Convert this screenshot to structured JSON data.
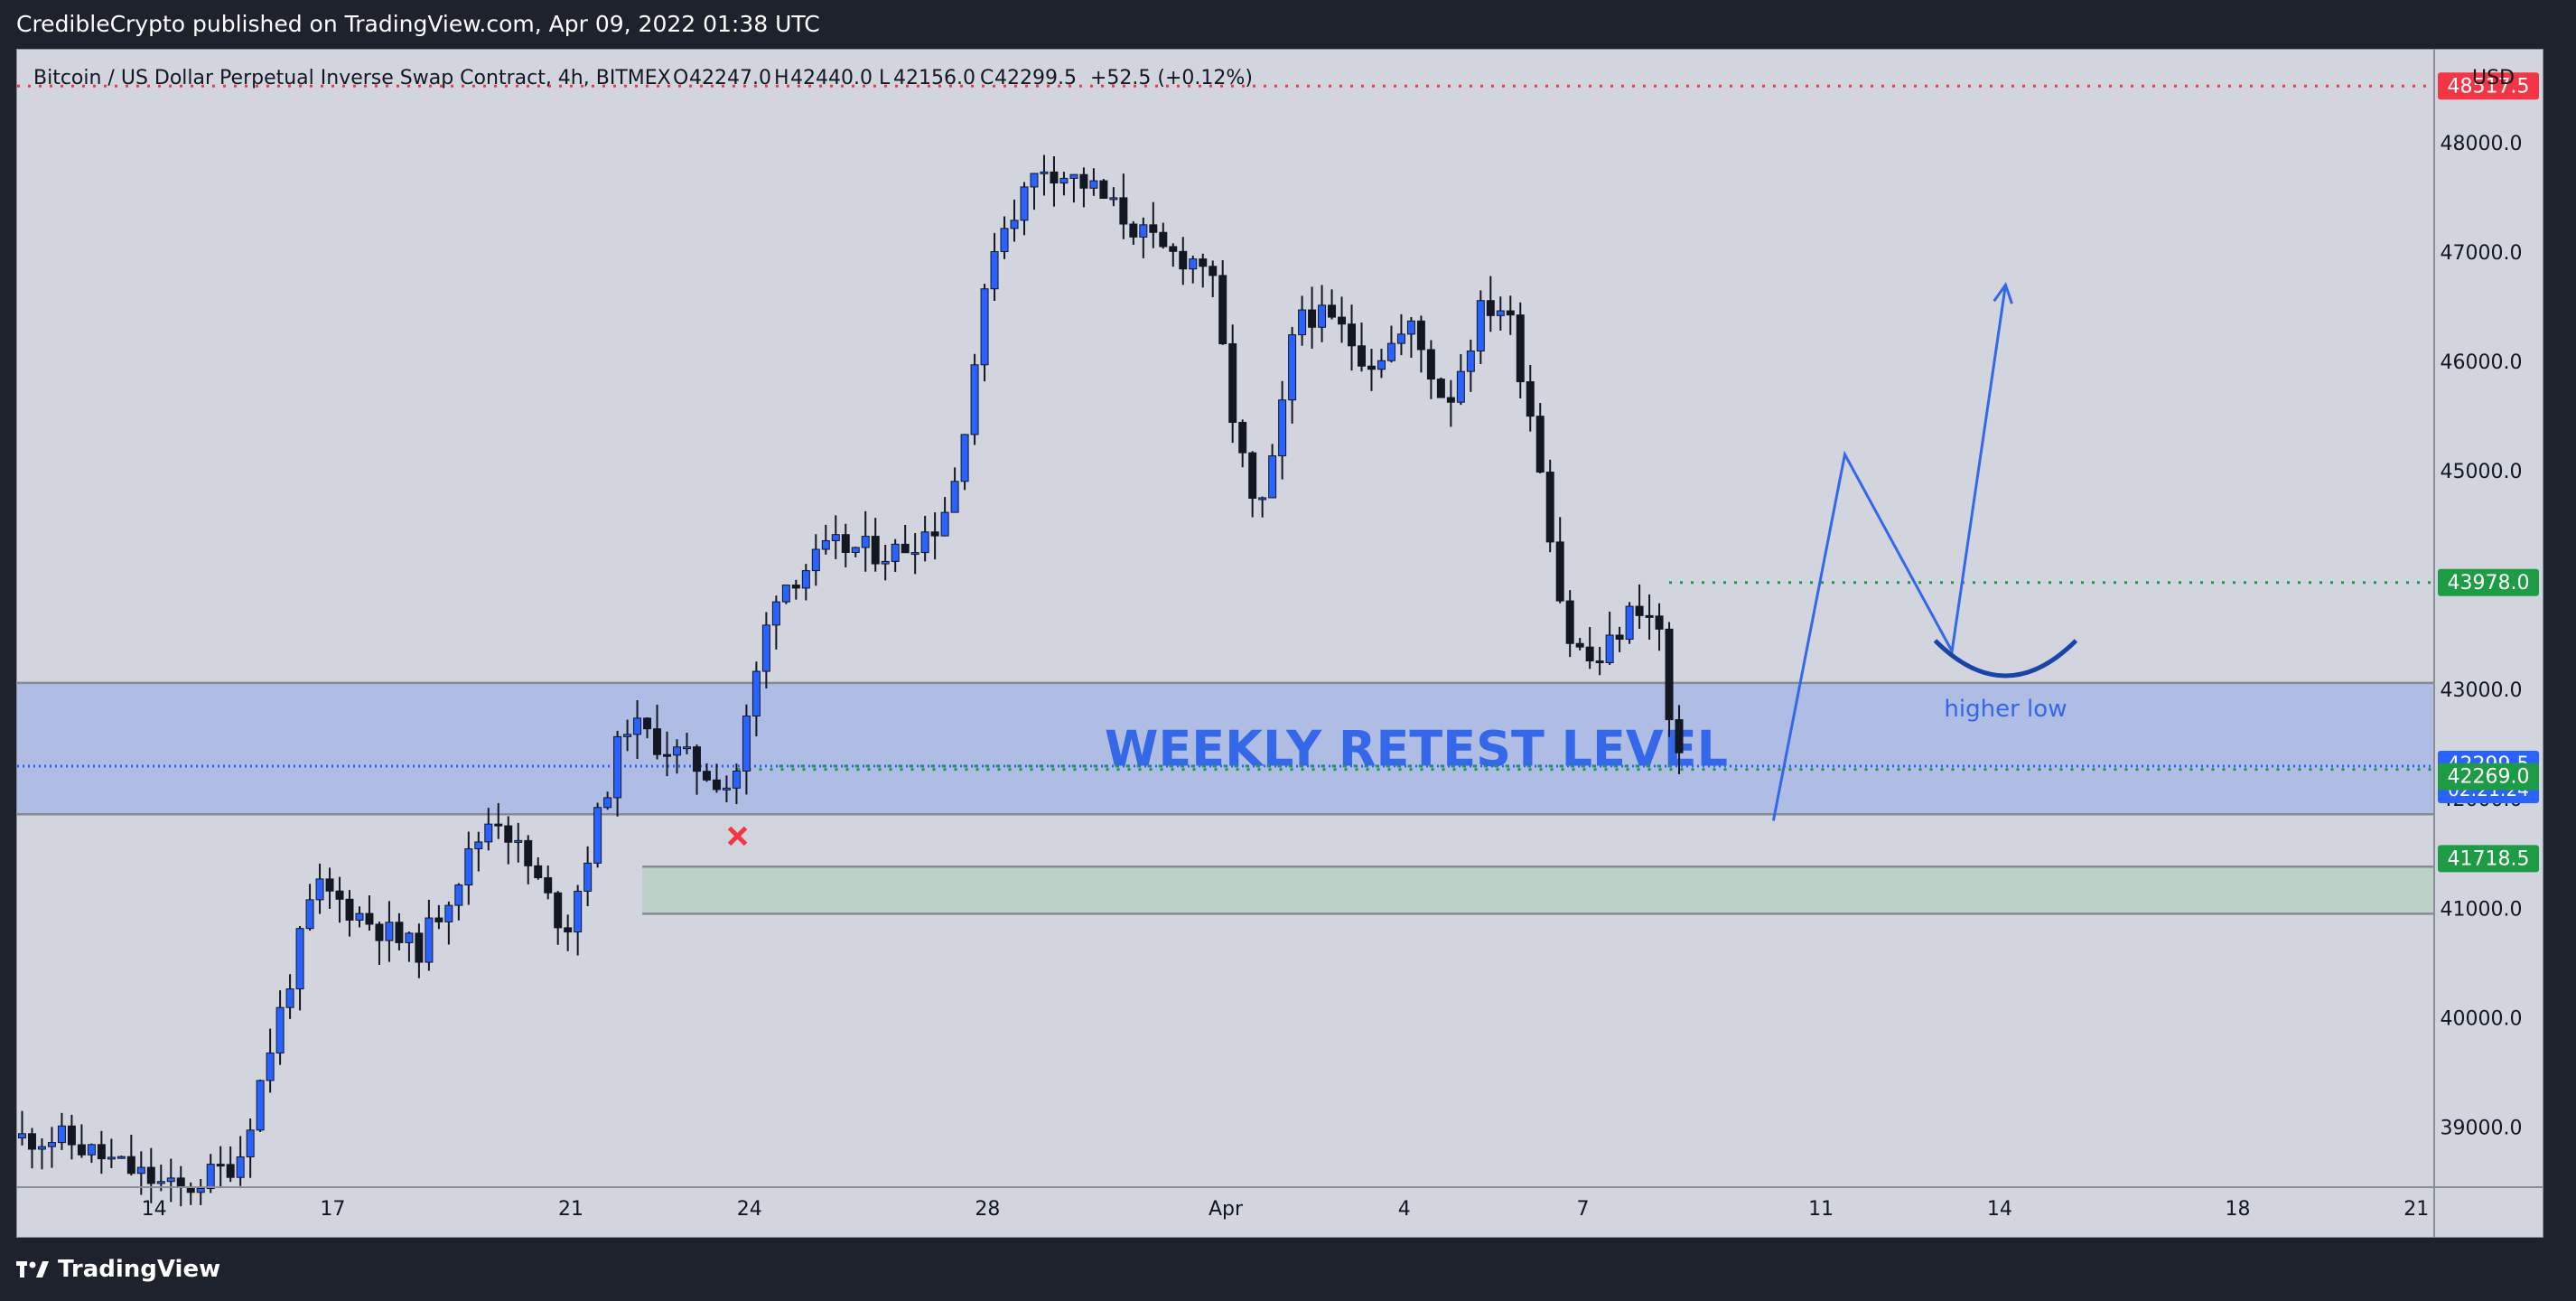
{
  "published_text": "CredibleCrypto published on TradingView.com, Apr 09, 2022 01:38 UTC",
  "brand_text": "TradingView",
  "symbol_title": "Bitcoin / US Dollar Perpetual Inverse Swap Contract, 4h, BITMEX",
  "ohlc": {
    "o_label": "O",
    "o": "42247.0",
    "h_label": "H",
    "h": "42440.0",
    "l_label": "L",
    "l": "42156.0",
    "c_label": "C",
    "c": "42299.5",
    "change": "+52.5 (+0.12%)"
  },
  "currency_label": "USD",
  "colors": {
    "bg": "#d2d5de",
    "frame": "#1e222d",
    "up": "#2962ff",
    "down": "#131722",
    "zone_blue": "#a9b7e4",
    "zone_green": "#b8d1c4",
    "red_line": "#f23645",
    "green_line": "#1e9c45",
    "annot": "#3468e8",
    "arc": "#1a44a8"
  },
  "chart_data": {
    "type": "candlestick",
    "timeframe": "4h",
    "ylim": [
      38450,
      48850
    ],
    "y_ticks": [
      "39000.0",
      "40000.0",
      "41000.0",
      "42000.0",
      "43000.0",
      "44000.0",
      "45000.0",
      "46000.0",
      "47000.0",
      "48000.0"
    ],
    "x_ticks": [
      {
        "label": "14",
        "day": 14
      },
      {
        "label": "17",
        "day": 17
      },
      {
        "label": "21",
        "day": 21
      },
      {
        "label": "24",
        "day": 24
      },
      {
        "label": "28",
        "day": 28
      },
      {
        "label": "Apr",
        "day": 32
      },
      {
        "label": "4",
        "day": 35
      },
      {
        "label": "7",
        "day": 38
      },
      {
        "label": "11",
        "day": 42
      },
      {
        "label": "14",
        "day": 45
      },
      {
        "label": "18",
        "day": 49
      },
      {
        "label": "21",
        "day": 52
      }
    ],
    "x_axis_note": "day numbers count from March 1 (day 32 = Apr 1)",
    "x_range_days": [
      11.7,
      52.3
    ],
    "day_anchors": [
      [
        12.5,
        38900
      ],
      [
        14.5,
        38400
      ],
      [
        15.5,
        38700
      ],
      [
        16.8,
        41200
      ],
      [
        18.5,
        40600
      ],
      [
        19.8,
        41900
      ],
      [
        21,
        40800
      ],
      [
        22,
        42700
      ],
      [
        23.8,
        42100
      ],
      [
        24.5,
        43900
      ],
      [
        25.5,
        44300
      ],
      [
        26.5,
        44250
      ],
      [
        27.2,
        44500
      ],
      [
        27.5,
        44800
      ],
      [
        28.2,
        47100
      ],
      [
        29,
        47800
      ],
      [
        29.8,
        47600
      ],
      [
        31,
        47000
      ],
      [
        31.8,
        46900
      ],
      [
        32.2,
        45500
      ],
      [
        32.6,
        44500
      ],
      [
        32.9,
        45100
      ],
      [
        33.3,
        46500
      ],
      [
        34,
        46300
      ],
      [
        34.5,
        46000
      ],
      [
        35.2,
        46300
      ],
      [
        35.8,
        45600
      ],
      [
        36.4,
        46500
      ],
      [
        36.8,
        46500
      ],
      [
        37.3,
        45300
      ],
      [
        37.8,
        43500
      ],
      [
        38.3,
        43200
      ],
      [
        39,
        43800
      ],
      [
        39.4,
        43500
      ],
      [
        39.6,
        42300
      ]
    ],
    "candles_description": "4h BTC/USD candles from ~Mar 12 to Apr 9 2022; last close 42299.5",
    "horizontal_levels": [
      {
        "price": 48517.5,
        "label": "48517.5",
        "style": "dotted",
        "color": "red"
      },
      {
        "price": 43978.0,
        "label": "43978.0",
        "style": "dotted",
        "color": "green"
      },
      {
        "price": 42299.5,
        "label": "42299.5",
        "sub_label": "02:21:24",
        "style": "dotted",
        "color": "blue"
      },
      {
        "price": 42269.0,
        "label": "42269.0",
        "style": "dotted",
        "color": "green"
      },
      {
        "price": 41718.5,
        "label": "41718.5",
        "style": "none",
        "color": "green"
      }
    ],
    "zones": [
      {
        "name": "weekly-retest",
        "top": 43060,
        "bottom": 41860,
        "label": "WEEKLY RETEST LEVEL"
      },
      {
        "name": "green-support",
        "top": 41380,
        "bottom": 40950
      }
    ],
    "projection_path": [
      [
        41.2,
        41800
      ],
      [
        42.4,
        45150
      ],
      [
        44.2,
        43350
      ],
      [
        45.1,
        46700
      ]
    ],
    "arc": {
      "day": 45.1,
      "price": 43200,
      "label": "higher low"
    }
  }
}
